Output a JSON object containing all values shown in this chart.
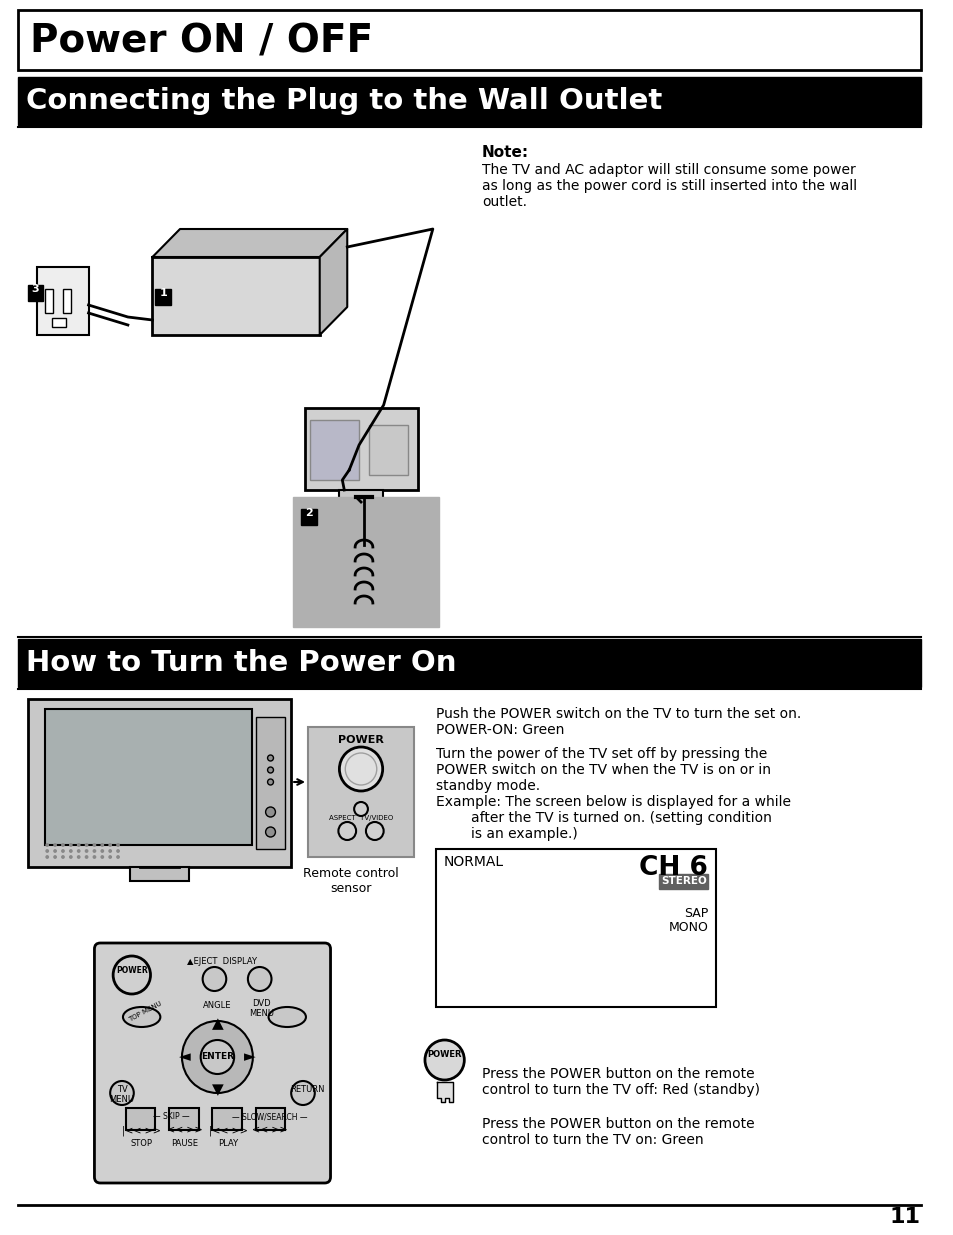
{
  "bg_color": "#ffffff",
  "title1": "Power ON / OFF",
  "title2": "Connecting the Plug to the Wall Outlet",
  "title3": "How to Turn the Power On",
  "note_title": "Note:",
  "note_text": "The TV and AC adaptor will still consume some power\nas long as the power cord is still inserted into the wall\noutlet.",
  "section2_text1": "Push the POWER switch on the TV to turn the set on.\nPOWER-ON: Green",
  "section2_text2": "Turn the power of the TV set off by pressing the\nPOWER switch on the TV when the TV is on or in\nstandby mode.",
  "section2_text3": "Example: The screen below is displayed for a while\n        after the TV is turned on. (setting condition\n        is an example.)",
  "ch6_normal": "NORMAL",
  "ch6_ch": "CH 6",
  "ch6_stereo": "STEREO",
  "ch6_sap": "SAP",
  "ch6_mono": "MONO",
  "remote_label": "Remote control\nsensor",
  "power_btn_text1": "Press the POWER button on the remote\ncontrol to turn the TV off: Red (standby)",
  "power_btn_text2": "Press the POWER button on the remote\ncontrol to turn the TV on: Green",
  "page_number": "11"
}
